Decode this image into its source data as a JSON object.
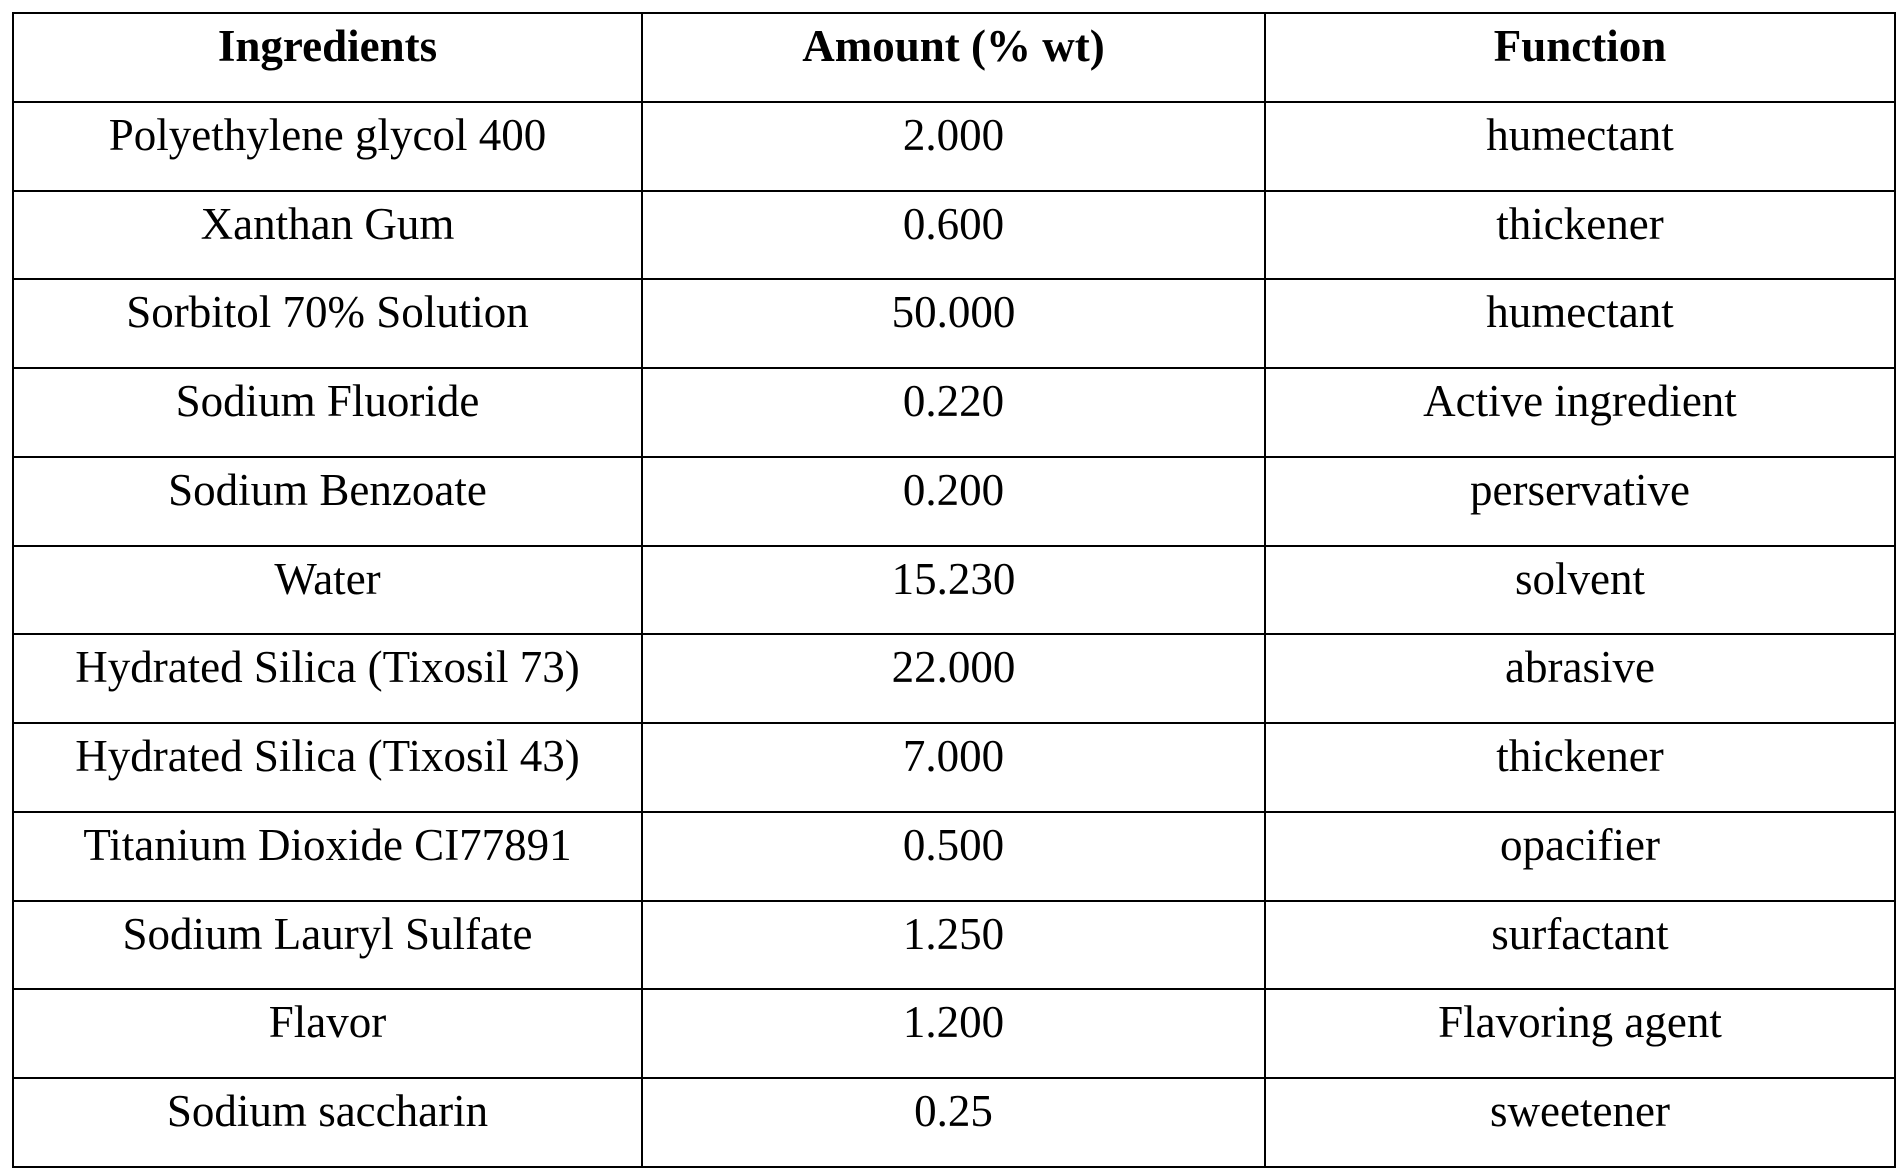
{
  "table": {
    "headers": [
      "Ingredients",
      "Amount (% wt)",
      "Function"
    ],
    "rows": [
      [
        "Polyethylene glycol 400",
        "2.000",
        "humectant"
      ],
      [
        "Xanthan Gum",
        "0.600",
        "thickener"
      ],
      [
        "Sorbitol  70% Solution",
        "50.000",
        "humectant"
      ],
      [
        "Sodium Fluoride",
        "0.220",
        "Active ingredient"
      ],
      [
        "Sodium Benzoate",
        "0.200",
        "perservative"
      ],
      [
        "Water",
        "15.230",
        "solvent"
      ],
      [
        "Hydrated Silica (Tixosil 73)",
        "22.000",
        "abrasive"
      ],
      [
        "Hydrated Silica (Tixosil 43)",
        "7.000",
        "thickener"
      ],
      [
        "Titanium Dioxide  CI77891",
        "0.500",
        "opacifier"
      ],
      [
        "Sodium Lauryl Sulfate",
        "1.250",
        "surfactant"
      ],
      [
        "Flavor",
        "1.200",
        "Flavoring agent"
      ],
      [
        "Sodium saccharin",
        "0.25",
        "sweetener"
      ]
    ]
  }
}
